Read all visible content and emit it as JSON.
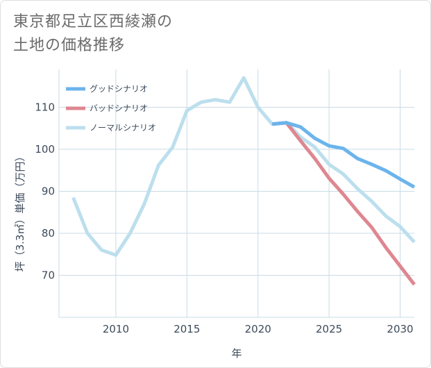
{
  "title_line1": "東京都足立区西綾瀬の",
  "title_line2": "土地の価格推移",
  "chart_data": {
    "type": "line",
    "xlabel": "年",
    "ylabel": "坪（3.3㎡）単価（万円）",
    "xlim": [
      2006,
      2031
    ],
    "ylim": [
      60,
      119
    ],
    "x_ticks": [
      2010,
      2015,
      2020,
      2025,
      2030
    ],
    "y_ticks": [
      70,
      80,
      90,
      100,
      110
    ],
    "grid": true,
    "legend_position": "top-left",
    "series": [
      {
        "name": "グッドシナリオ",
        "color": "#6cb4ec",
        "x": [
          2021,
          2022,
          2023,
          2024,
          2025,
          2026,
          2027,
          2028,
          2029,
          2030,
          2031
        ],
        "values": [
          106.0,
          106.3,
          105.3,
          102.6,
          100.8,
          100.2,
          97.8,
          96.4,
          94.9,
          92.9,
          91.0
        ]
      },
      {
        "name": "バッドシナリオ",
        "color": "#de8790",
        "x": [
          2021,
          2022,
          2023,
          2024,
          2025,
          2026,
          2027,
          2028,
          2029,
          2030,
          2031
        ],
        "values": [
          106.0,
          106.3,
          102.0,
          97.8,
          93.1,
          89.3,
          85.2,
          81.4,
          76.6,
          72.2,
          67.8
        ]
      },
      {
        "name": "ノーマルシナリオ",
        "color": "#bcdfed",
        "x": [
          2007,
          2008,
          2009,
          2010,
          2011,
          2012,
          2013,
          2014,
          2015,
          2016,
          2017,
          2018,
          2019,
          2020,
          2021,
          2022,
          2023,
          2024,
          2025,
          2026,
          2027,
          2028,
          2029,
          2030,
          2031
        ],
        "values": [
          88.5,
          80.0,
          76.0,
          74.8,
          80.0,
          87.0,
          96.2,
          100.5,
          109.2,
          111.2,
          111.8,
          111.2,
          117.0,
          110.0,
          106.0,
          106.3,
          102.9,
          100.5,
          96.4,
          94.1,
          90.6,
          87.6,
          84.1,
          81.6,
          77.9
        ]
      }
    ]
  }
}
